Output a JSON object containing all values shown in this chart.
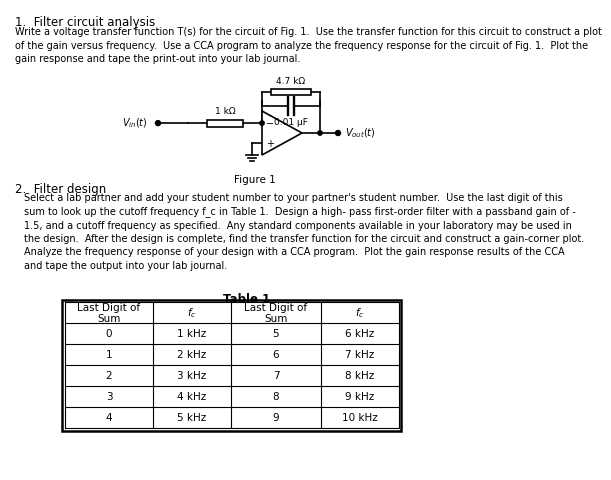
{
  "title1": "1.  Filter circuit analysis",
  "para1": "Write a voltage transfer function T(s) for the circuit of Fig. 1.  Use the transfer function for this circuit to construct a plot\nof the gain versus frequency.  Use a CCA program to analyze the frequency response for the circuit of Fig. 1.  Plot the\ngain response and tape the print-out into your lab journal.",
  "title2": "2.  Filter design",
  "para2_line1": "Select a lab partner and add your student number to your partner's student number.  Use the last digit of this",
  "para2_line2": "sum to look up the cutoff frequency f_c in Table 1.  Design a high- pass first-order filter with a passband gain of -",
  "para2_line3": "1.5, and a cutoff frequency as specified.  Any standard components available in your laboratory may be used in",
  "para2_line4": "the design.  After the design is complete, find the transfer function for the circuit and construct a gain-corner plot.",
  "para2_line5": "Analyze the frequency response of your design with a CCA program.  Plot the gain response results of the CCA",
  "para2_line6": "and tape the output into your lab journal.",
  "fig_caption": "Figure 1",
  "table_title": "Table 1",
  "table_rows": [
    [
      "0",
      "1 kHz",
      "5",
      "6 kHz"
    ],
    [
      "1",
      "2 kHz",
      "6",
      "7 kHz"
    ],
    [
      "2",
      "3 kHz",
      "7",
      "8 kHz"
    ],
    [
      "3",
      "4 kHz",
      "8",
      "9 kHz"
    ],
    [
      "4",
      "5 kHz",
      "9",
      "10 kHz"
    ]
  ],
  "bg_color": "#ffffff",
  "text_color": "#000000",
  "font_size_title": 8.5,
  "font_size_body": 7.5,
  "font_size_table": 7.5,
  "r1_label": "1 kΩ",
  "r2_label": "4.7 kΩ",
  "cap_label": "0.01 μF",
  "minus_sign": "−",
  "dash": "–"
}
